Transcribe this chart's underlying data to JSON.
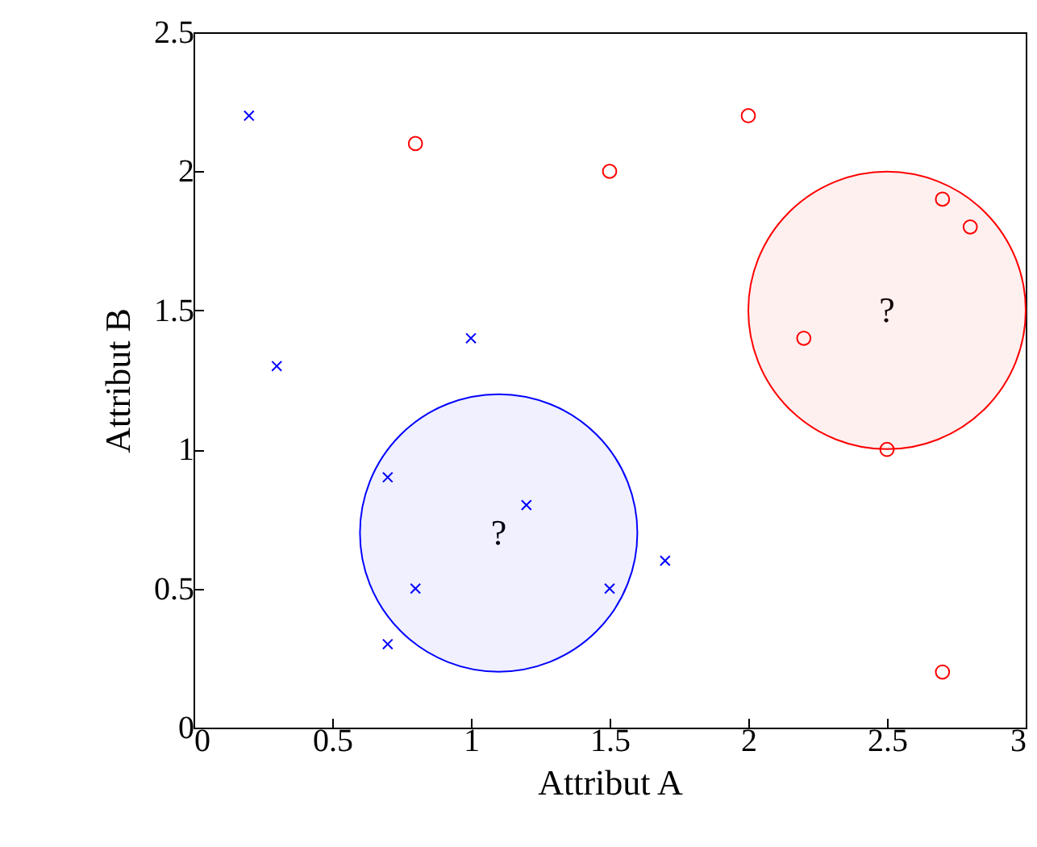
{
  "chart_data": {
    "type": "scatter",
    "xlabel": "Attribut A",
    "ylabel": "Attribut B",
    "xlim": [
      0,
      3
    ],
    "xticks": [
      0,
      0.5,
      1,
      1.5,
      2,
      2.5,
      3
    ],
    "ylim": [
      0,
      2.5
    ],
    "yticks": [
      0,
      0.5,
      1,
      1.5,
      2,
      2.5
    ],
    "grid": false,
    "series": [
      {
        "color": "#0000ff",
        "marker": "cross",
        "x": [
          0.2,
          0.3,
          1.0,
          0.7,
          1.2,
          0.8,
          0.7,
          1.5,
          1.7
        ],
        "values": [
          2.2,
          1.3,
          1.4,
          0.9,
          0.8,
          0.5,
          0.3,
          0.5,
          0.6
        ]
      },
      {
        "color": "#ff0000",
        "marker": "circle",
        "x": [
          0.8,
          1.5,
          2.0,
          2.7,
          2.8,
          2.2,
          2.5,
          2.7
        ],
        "values": [
          2.1,
          2.0,
          2.2,
          1.9,
          1.8,
          1.4,
          1.0,
          0.2
        ]
      },
      {
        "type": "bubble",
        "color": "#0000ff",
        "x": [
          1.1
        ],
        "values": [
          0.7
        ],
        "sizes": [
          1
        ]
      },
      {
        "type": "bubble",
        "color": "#ff0000",
        "x": [
          2.5
        ],
        "values": [
          1.5
        ],
        "sizes": [
          1
        ]
      }
    ],
    "annotations": [
      {
        "text": "?",
        "x": 1.1,
        "y": 0.7
      },
      {
        "text": "?",
        "x": 2.5,
        "y": 1.5
      }
    ]
  }
}
